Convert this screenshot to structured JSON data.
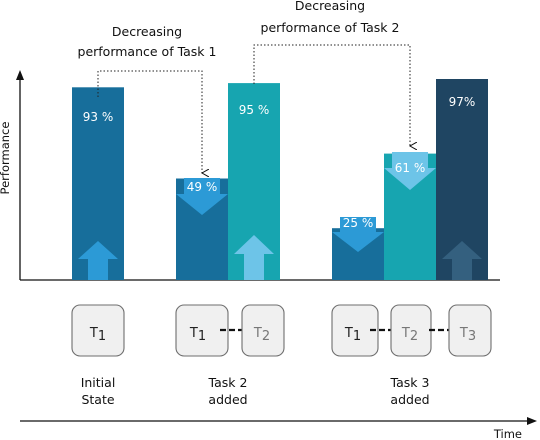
{
  "annotations": {
    "task1": {
      "line1": "Decreasing",
      "line2": "performance of Task 1"
    },
    "task2": {
      "line1": "Decreasing",
      "line2": "performance of Task 2"
    }
  },
  "axes": {
    "y_label": "Performance",
    "x_label": "Time"
  },
  "bars": [
    {
      "label": "93 %",
      "value": 93,
      "color": "#176e9b"
    },
    {
      "label": "49 %",
      "value": 49,
      "color": "#176e9b"
    },
    {
      "label": "95 %",
      "value": 95,
      "color": "#17a5b0"
    },
    {
      "label": "25 %",
      "value": 25,
      "color": "#176e9b"
    },
    {
      "label": "61 %",
      "value": 61,
      "color": "#17a5b0"
    },
    {
      "label": "97%",
      "value": 97,
      "color": "#1f4562"
    }
  ],
  "stages": [
    {
      "line1": "Initial",
      "line2": "State"
    },
    {
      "line1": "Task 2",
      "line2": "added"
    },
    {
      "line1": "Task 3",
      "line2": "added"
    }
  ],
  "tasks": {
    "t1": {
      "letter": "T",
      "sub": "1"
    },
    "t2": {
      "letter": "T",
      "sub": "2"
    },
    "t3": {
      "letter": "T",
      "sub": "3"
    }
  }
}
